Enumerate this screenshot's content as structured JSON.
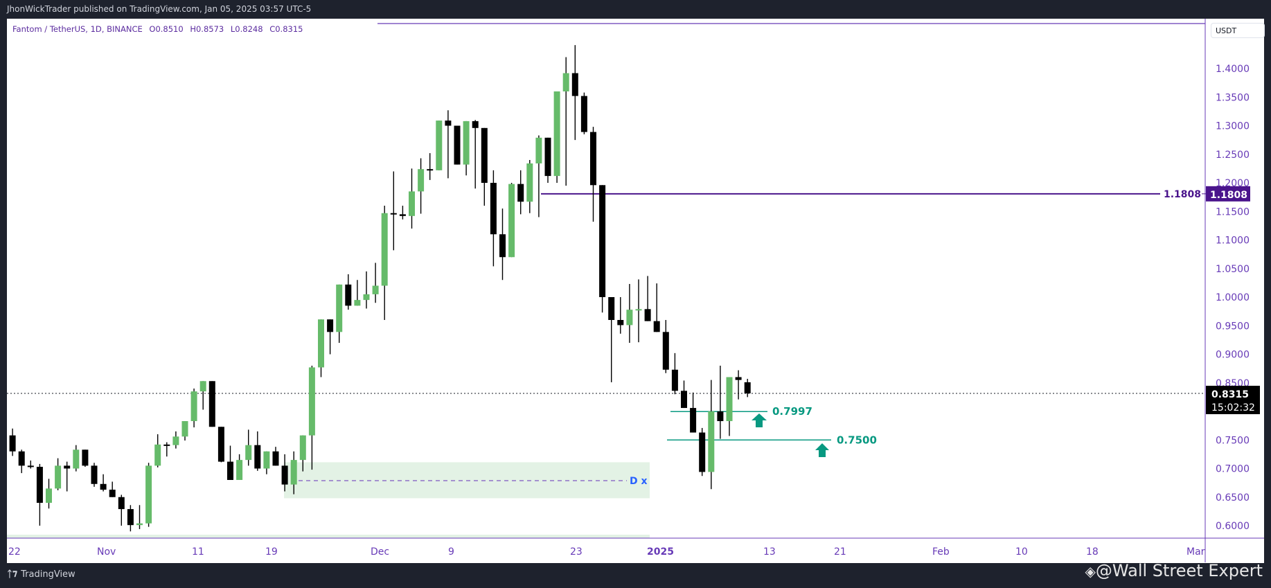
{
  "header": {
    "publish_info": "JhonWickTrader published on TradingView.com, Jan 05, 2025 03:57 UTC-5"
  },
  "legend": {
    "symbol": "Fantom / TetherUS, 1D, BINANCE",
    "open": "O0.8510",
    "high": "H0.8573",
    "low": "L0.8248",
    "close": "C0.8315"
  },
  "price_axis": {
    "currency": "USDT",
    "ticks": [
      "1.4000",
      "1.3500",
      "1.3000",
      "1.2500",
      "1.2000",
      "1.1500",
      "1.1000",
      "1.0500",
      "1.0000",
      "0.9500",
      "0.9000",
      "0.8500",
      "0.7500",
      "0.7000",
      "0.6500",
      "0.6000"
    ],
    "last_price": "0.8315",
    "countdown": "15:02:32",
    "level_label": "1.1808"
  },
  "time_axis": {
    "ticks": [
      "22",
      "Nov",
      "11",
      "19",
      "Dec",
      "9",
      "23",
      "2025",
      "13",
      "21",
      "Feb",
      "10",
      "18",
      "Mar"
    ]
  },
  "annotations": {
    "resistance_label": "1.1808",
    "support1_label": "0.7997",
    "support2_label": "0.7500",
    "pattern_label": "D x"
  },
  "footer": {
    "brand": "TradingView",
    "watermark": "@Wall Street Expert"
  },
  "colors": {
    "up": "#66bb6a",
    "down": "#000000",
    "accent": "#4a148c",
    "axis_text": "#673ab7",
    "support": "#089981",
    "zone": "#e3f2e5",
    "pattern": "#2962ff"
  },
  "chart_data": {
    "type": "candlestick",
    "title": "Fantom / TetherUS, 1D, BINANCE",
    "xlabel": "",
    "ylabel": "USDT",
    "ylim": [
      0.58,
      1.44
    ],
    "x_ticks": [
      "22",
      "Nov",
      "11",
      "19",
      "Dec",
      "9",
      "23",
      "2025",
      "13",
      "21",
      "Feb",
      "10",
      "18",
      "Mar"
    ],
    "horizontal_levels": [
      {
        "price": 1.4418,
        "label": "",
        "style": "solid"
      },
      {
        "price": 1.1808,
        "label": "1.1808",
        "style": "solid"
      },
      {
        "price": 0.7997,
        "label": "0.7997",
        "style": "solid"
      },
      {
        "price": 0.75,
        "label": "0.7500",
        "style": "solid"
      },
      {
        "price": 0.6808,
        "label": "D x",
        "style": "dashed"
      }
    ],
    "zones": [
      {
        "from": 0.648,
        "to": 0.711
      }
    ],
    "candles": [
      [
        0.772,
        0.78,
        0.754,
        0.758
      ],
      [
        0.758,
        0.77,
        0.722,
        0.73
      ],
      [
        0.73,
        0.733,
        0.692,
        0.705
      ],
      [
        0.705,
        0.714,
        0.7,
        0.703
      ],
      [
        0.703,
        0.708,
        0.6,
        0.64
      ],
      [
        0.64,
        0.682,
        0.63,
        0.665
      ],
      [
        0.665,
        0.718,
        0.662,
        0.705
      ],
      [
        0.705,
        0.712,
        0.66,
        0.7
      ],
      [
        0.7,
        0.741,
        0.695,
        0.733
      ],
      [
        0.733,
        0.733,
        0.703,
        0.705
      ],
      [
        0.705,
        0.71,
        0.668,
        0.673
      ],
      [
        0.673,
        0.69,
        0.66,
        0.663
      ],
      [
        0.663,
        0.677,
        0.65,
        0.65
      ],
      [
        0.65,
        0.654,
        0.6,
        0.629
      ],
      [
        0.629,
        0.636,
        0.59,
        0.601
      ],
      [
        0.601,
        0.636,
        0.594,
        0.604
      ],
      [
        0.604,
        0.71,
        0.598,
        0.705
      ],
      [
        0.705,
        0.76,
        0.702,
        0.742
      ],
      [
        0.742,
        0.746,
        0.721,
        0.741
      ],
      [
        0.741,
        0.765,
        0.735,
        0.756
      ],
      [
        0.756,
        0.78,
        0.749,
        0.783
      ],
      [
        0.783,
        0.84,
        0.772,
        0.835
      ],
      [
        0.835,
        0.852,
        0.803,
        0.853
      ],
      [
        0.853,
        0.852,
        0.786,
        0.773
      ],
      [
        0.773,
        0.763,
        0.711,
        0.712
      ],
      [
        0.712,
        0.74,
        0.7,
        0.68
      ],
      [
        0.68,
        0.725,
        0.68,
        0.715
      ],
      [
        0.715,
        0.768,
        0.705,
        0.741
      ],
      [
        0.741,
        0.765,
        0.696,
        0.7
      ],
      [
        0.7,
        0.73,
        0.69,
        0.73
      ],
      [
        0.73,
        0.738,
        0.707,
        0.705
      ],
      [
        0.705,
        0.725,
        0.66,
        0.672
      ],
      [
        0.672,
        0.73,
        0.655,
        0.715
      ],
      [
        0.715,
        0.752,
        0.695,
        0.758
      ],
      [
        0.758,
        0.88,
        0.698,
        0.877
      ],
      [
        0.877,
        0.96,
        0.86,
        0.961
      ],
      [
        0.961,
        0.943,
        0.9,
        0.939
      ],
      [
        0.939,
        1.01,
        0.92,
        1.022
      ],
      [
        1.022,
        1.04,
        0.978,
        0.985
      ],
      [
        0.985,
        1.03,
        0.99,
        0.995
      ],
      [
        0.995,
        1.045,
        0.98,
        1.005
      ],
      [
        1.005,
        1.06,
        0.99,
        1.02
      ],
      [
        1.02,
        1.16,
        0.96,
        1.147
      ],
      [
        1.147,
        1.22,
        1.082,
        1.145
      ],
      [
        1.145,
        1.16,
        1.136,
        1.142
      ],
      [
        1.142,
        1.225,
        1.12,
        1.185
      ],
      [
        1.185,
        1.243,
        1.146,
        1.224
      ],
      [
        1.224,
        1.252,
        1.205,
        1.222
      ],
      [
        1.222,
        1.272,
        1.24,
        1.309
      ],
      [
        1.309,
        1.327,
        1.208,
        1.3
      ],
      [
        1.3,
        1.296,
        1.251,
        1.232
      ],
      [
        1.232,
        1.267,
        1.213,
        1.308
      ],
      [
        1.308,
        1.31,
        1.19,
        1.296
      ],
      [
        1.296,
        1.245,
        1.16,
        1.2
      ],
      [
        1.2,
        1.222,
        1.054,
        1.11
      ],
      [
        1.11,
        1.155,
        1.03,
        1.07
      ],
      [
        1.07,
        1.2,
        1.08,
        1.198
      ],
      [
        1.198,
        1.222,
        1.145,
        1.167
      ],
      [
        1.167,
        1.24,
        1.147,
        1.234
      ],
      [
        1.234,
        1.283,
        1.14,
        1.279
      ],
      [
        1.279,
        1.265,
        1.2,
        1.212
      ],
      [
        1.212,
        1.36,
        1.2,
        1.36
      ],
      [
        1.36,
        1.42,
        1.195,
        1.392
      ],
      [
        1.392,
        1.441,
        1.275,
        1.352
      ],
      [
        1.352,
        1.358,
        1.285,
        1.289
      ],
      [
        1.289,
        1.298,
        1.132,
        1.196
      ],
      [
        1.196,
        1.135,
        0.973,
        1.0
      ],
      [
        1.0,
        0.981,
        0.851,
        0.96
      ],
      [
        0.96,
        1.0,
        0.936,
        0.951
      ],
      [
        0.951,
        1.023,
        0.92,
        0.978
      ],
      [
        0.978,
        1.031,
        0.921,
        0.979
      ],
      [
        0.979,
        1.037,
        0.966,
        0.958
      ],
      [
        0.958,
        1.024,
        0.946,
        0.939
      ],
      [
        0.939,
        0.96,
        0.867,
        0.873
      ],
      [
        0.873,
        0.902,
        0.83,
        0.836
      ],
      [
        0.836,
        0.854,
        0.816,
        0.806
      ],
      [
        0.806,
        0.833,
        0.765,
        0.763
      ],
      [
        0.763,
        0.771,
        0.687,
        0.694
      ],
      [
        0.694,
        0.855,
        0.664,
        0.8
      ],
      [
        0.8,
        0.88,
        0.752,
        0.783
      ],
      [
        0.783,
        0.854,
        0.757,
        0.86
      ],
      [
        0.86,
        0.872,
        0.821,
        0.855
      ],
      [
        0.851,
        0.857,
        0.825,
        0.8315
      ]
    ]
  }
}
